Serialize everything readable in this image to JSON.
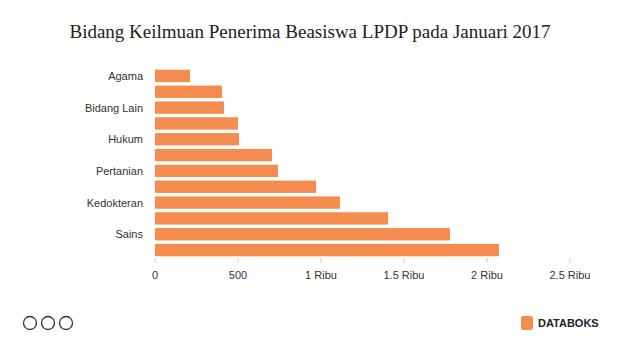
{
  "chart_data": {
    "type": "bar",
    "orientation": "horizontal",
    "title": "Bidang Keilmuan Penerima Beasiswa LPDP pada Januari 2017",
    "categories": [
      "Agama",
      null,
      "Bidang Lain",
      null,
      "Hukum",
      null,
      "Pertanian",
      null,
      "Kedokteran",
      null,
      "Sains",
      null
    ],
    "values": [
      211,
      404,
      416,
      500,
      506,
      705,
      741,
      970,
      1114,
      1404,
      1777,
      2072
    ],
    "color": "#f58d51",
    "xlim": [
      0,
      2500
    ],
    "xticks": [
      0,
      500,
      {
        "value": 1000,
        "label": "1 Ribu"
      },
      {
        "value": 1500,
        "label": "1.5 Ribu"
      },
      {
        "value": 2000,
        "label": "2 Ribu"
      },
      {
        "value": 2500,
        "label": "2.5 Ribu"
      }
    ],
    "grid": false,
    "annotations": [
      "DATABOKS"
    ]
  }
}
